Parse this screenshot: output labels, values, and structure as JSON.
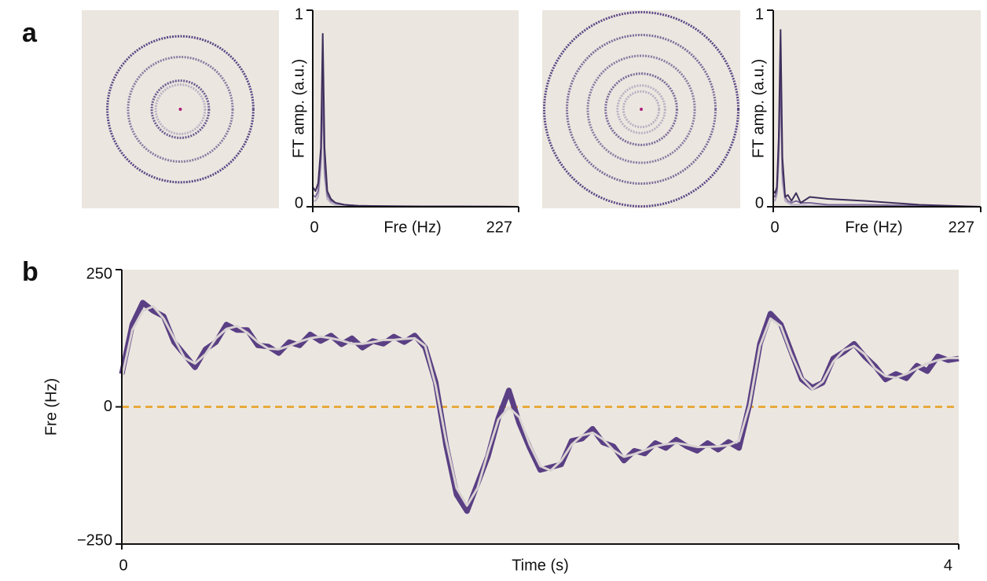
{
  "panel_labels": [
    "a",
    "b"
  ],
  "chart_data": [
    {
      "type": "rings",
      "xlim": [
        -1,
        1
      ],
      "ylim": [
        -1,
        1
      ],
      "values": [
        0.74,
        0.53,
        0.29,
        0.25
      ],
      "colors": [
        "#5b4585",
        "#8a7aa3",
        "#6e5b92",
        "#b9b0c3"
      ]
    },
    {
      "type": "line",
      "xlabel": "Fre (Hz)",
      "ylabel": "FT amp. (a.u.)",
      "xlim": [
        0,
        227
      ],
      "ylim": [
        0,
        1
      ],
      "xticks": [
        0,
        227
      ],
      "yticks": [
        0,
        1
      ],
      "x": [
        0,
        3,
        6,
        9,
        11,
        13,
        16,
        20,
        25,
        35,
        50,
        80,
        120,
        160,
        200,
        227
      ],
      "series": [
        {
          "color": "#b8afc4",
          "values": [
            0.03,
            0.03,
            0.05,
            0.2,
            0.55,
            0.15,
            0.04,
            0.02,
            0.01,
            0.01,
            0.004,
            0.002,
            0.001,
            0.001,
            0,
            0
          ]
        },
        {
          "color": "#7d6a9a",
          "values": [
            0.06,
            0.05,
            0.08,
            0.25,
            0.62,
            0.2,
            0.06,
            0.03,
            0.02,
            0.01,
            0.005,
            0.003,
            0.002,
            0.001,
            0.001,
            0
          ]
        },
        {
          "color": "#3f2f5c",
          "values": [
            0.1,
            0.08,
            0.12,
            0.3,
            0.88,
            0.3,
            0.08,
            0.04,
            0.02,
            0.01,
            0.005,
            0.003,
            0.002,
            0.002,
            0.001,
            0
          ]
        }
      ]
    },
    {
      "type": "rings",
      "xlim": [
        -1,
        1
      ],
      "ylim": [
        -1,
        1
      ],
      "values": [
        0.98,
        0.75,
        0.54,
        0.36,
        0.24,
        0.18
      ],
      "colors": [
        "#5b4585",
        "#7d6a9a",
        "#8a7aa3",
        "#7d6a9a",
        "#b9b0c3",
        "#b9b0c3"
      ]
    },
    {
      "type": "line",
      "xlabel": "Fre (Hz)",
      "ylabel": "FT amp. (a.u.)",
      "xlim": [
        0,
        227
      ],
      "ylim": [
        0,
        1
      ],
      "xticks": [
        0,
        227
      ],
      "yticks": [
        0,
        1
      ],
      "x": [
        0,
        2,
        4,
        6,
        8,
        10,
        13,
        16,
        20,
        25,
        30,
        40,
        60,
        100,
        160,
        227
      ],
      "series": [
        {
          "color": "#b8afc4",
          "values": [
            0.04,
            0.03,
            0.06,
            0.22,
            0.6,
            0.12,
            0.03,
            0.02,
            0.01,
            0.01,
            0.01,
            0.005,
            0.005,
            0.002,
            0,
            0
          ]
        },
        {
          "color": "#7d6a9a",
          "values": [
            0.06,
            0.05,
            0.08,
            0.3,
            0.7,
            0.18,
            0.05,
            0.03,
            0.02,
            0.03,
            0.02,
            0.02,
            0.01,
            0.01,
            0.005,
            0
          ]
        },
        {
          "color": "#3f2f5c",
          "values": [
            0.08,
            0.07,
            0.1,
            0.35,
            0.9,
            0.25,
            0.05,
            0.06,
            0.03,
            0.07,
            0.02,
            0.05,
            0.04,
            0.03,
            0.01,
            0
          ]
        }
      ]
    },
    {
      "type": "line",
      "xlabel": "Time (s)",
      "ylabel": "Fre (Hz)",
      "xlim": [
        0,
        4
      ],
      "ylim": [
        -250,
        250
      ],
      "xticks": [
        0,
        4
      ],
      "yticks": [
        250,
        0,
        {
          "value": -250,
          "label": "−250"
        }
      ],
      "reference_line": {
        "value": 0,
        "color": "#e8a93c"
      },
      "x": [
        0,
        0.05,
        0.1,
        0.15,
        0.2,
        0.25,
        0.3,
        0.35,
        0.4,
        0.45,
        0.5,
        0.55,
        0.6,
        0.65,
        0.7,
        0.75,
        0.8,
        0.85,
        0.9,
        0.95,
        1.0,
        1.05,
        1.1,
        1.15,
        1.2,
        1.25,
        1.3,
        1.35,
        1.4,
        1.45,
        1.5,
        1.55,
        1.6,
        1.65,
        1.7,
        1.75,
        1.8,
        1.85,
        1.9,
        1.95,
        2.0,
        2.05,
        2.1,
        2.15,
        2.2,
        2.25,
        2.3,
        2.35,
        2.4,
        2.45,
        2.5,
        2.55,
        2.6,
        2.65,
        2.7,
        2.75,
        2.8,
        2.85,
        2.9,
        2.95,
        3.0,
        3.05,
        3.1,
        3.15,
        3.2,
        3.25,
        3.3,
        3.35,
        3.4,
        3.45,
        3.5,
        3.55,
        3.6,
        3.65,
        3.7,
        3.75,
        3.8,
        3.85,
        3.9,
        3.95,
        4.0
      ],
      "series": [
        {
          "color": "#5a3f84",
          "width": 7,
          "values": [
            60,
            150,
            190,
            175,
            165,
            118,
            95,
            72,
            105,
            118,
            150,
            140,
            140,
            112,
            110,
            98,
            118,
            112,
            132,
            120,
            130,
            114,
            125,
            108,
            120,
            115,
            128,
            118,
            130,
            108,
            45,
            -70,
            -160,
            -190,
            -140,
            -90,
            -20,
            30,
            -30,
            -75,
            -115,
            -110,
            -105,
            -62,
            -58,
            -40,
            -65,
            -72,
            -98,
            -80,
            -85,
            -66,
            -75,
            -60,
            -72,
            -80,
            -66,
            -78,
            -64,
            -75,
            5,
            115,
            170,
            150,
            100,
            50,
            35,
            44,
            88,
            100,
            115,
            92,
            74,
            50,
            60,
            52,
            75,
            65,
            92,
            85,
            88
          ]
        },
        {
          "color": "#d9d2d2",
          "width": 3,
          "values": [
            53,
            140,
            175,
            183,
            161,
            125,
            89,
            79,
            96,
            125,
            142,
            147,
            135,
            118,
            106,
            105,
            111,
            119,
            125,
            128,
            125,
            121,
            115,
            115,
            118,
            122,
            122,
            124,
            125,
            111,
            39,
            -62,
            -148,
            -180,
            -148,
            -83,
            -23,
            -1,
            -19,
            -69,
            -108,
            -116,
            -98,
            -69,
            -52,
            -47,
            -59,
            -79,
            -91,
            -86,
            -79,
            -72,
            -68,
            -66,
            -69,
            -73,
            -73,
            -72,
            -70,
            -62,
            3,
            111,
            161,
            147,
            96,
            53,
            32,
            46,
            82,
            103,
            111,
            96,
            70,
            56,
            53,
            60,
            70,
            79,
            85,
            89,
            89
          ]
        }
      ]
    }
  ]
}
